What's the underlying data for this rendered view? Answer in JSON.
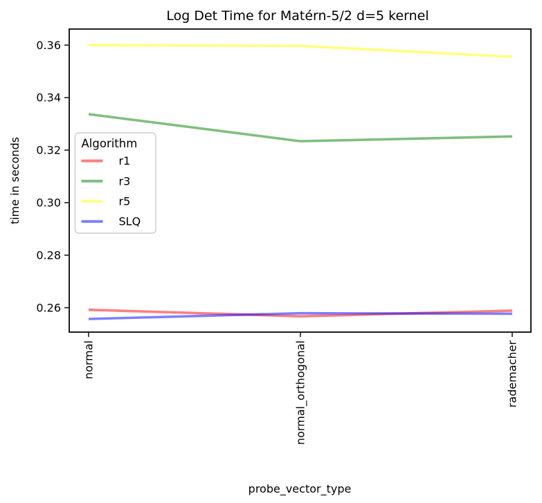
{
  "chart_data": {
    "type": "line",
    "title": "Log Det Time for Matérn-5/2 d=5 kernel",
    "xlabel": "probe_vector_type",
    "ylabel": "time in seconds",
    "categories": [
      "normal",
      "normal_orthogonal",
      "rademacher"
    ],
    "series": [
      {
        "name": "r1",
        "color": "#FF0000",
        "alpha": 0.5,
        "values": [
          0.2592,
          0.2567,
          0.2589
        ]
      },
      {
        "name": "r3",
        "color": "#008000",
        "alpha": 0.5,
        "values": [
          0.3337,
          0.3234,
          0.3252
        ]
      },
      {
        "name": "r5",
        "color": "#FFFF00",
        "alpha": 0.5,
        "values": [
          0.36,
          0.3597,
          0.3555
        ]
      },
      {
        "name": "SLQ",
        "color": "#0000FF",
        "alpha": 0.5,
        "values": [
          0.2557,
          0.2579,
          0.2577
        ]
      }
    ],
    "yticks": [
      0.26,
      0.28,
      0.3,
      0.32,
      0.34,
      0.36
    ],
    "ytick_labels": [
      "0.26",
      "0.28",
      "0.30",
      "0.32",
      "0.34",
      "0.36"
    ],
    "ylim": [
      0.2507,
      0.3661
    ],
    "grid": false,
    "legend": {
      "title": "Algorithm",
      "position": "upper-left-inside",
      "entries": [
        "r1",
        "r3",
        "r5",
        "SLQ"
      ]
    },
    "colors": {
      "spine": "#1d1d1d",
      "tick": "#1d1d1d",
      "legend_border": "#cccccc",
      "legend_bg_alpha": 0.8
    }
  }
}
